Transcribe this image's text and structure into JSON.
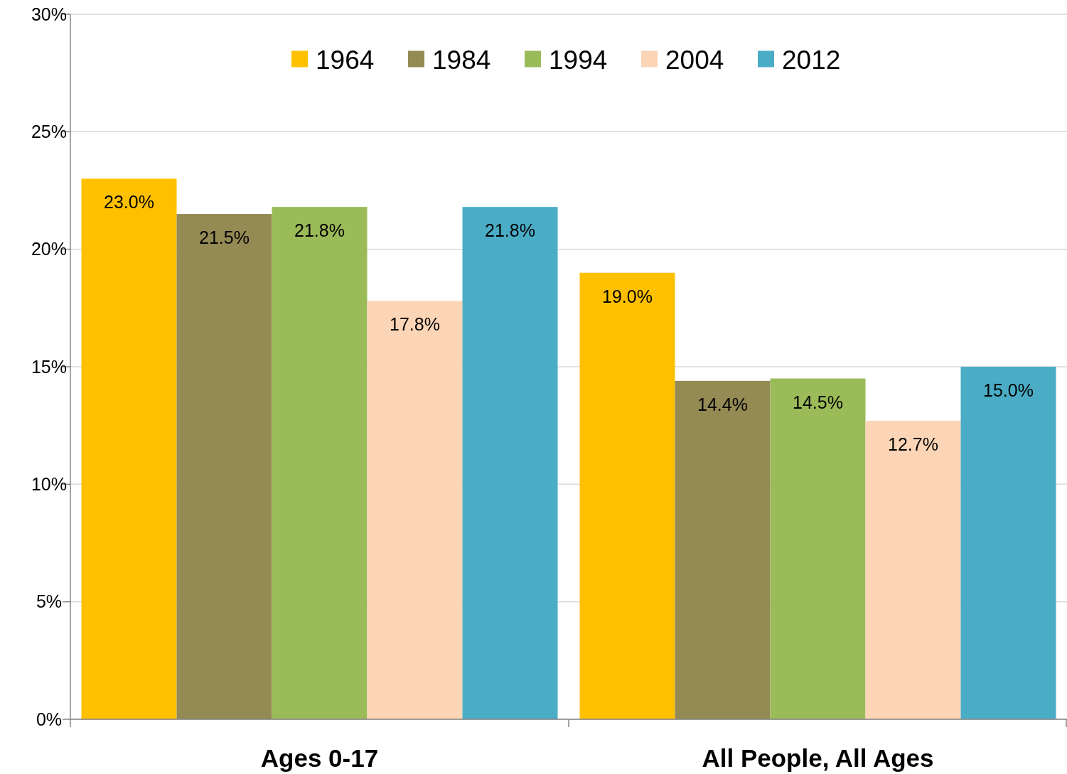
{
  "chart_data": {
    "type": "bar",
    "categories": [
      "Ages 0-17",
      "All People, All Ages"
    ],
    "series": [
      {
        "name": "1964",
        "color": "#ffc000",
        "values": [
          23.0,
          19.0
        ],
        "value_labels": [
          "23.0%",
          "19.0%"
        ]
      },
      {
        "name": "1984",
        "color": "#948a54",
        "values": [
          21.5,
          14.4
        ],
        "value_labels": [
          "21.5%",
          "14.4%"
        ]
      },
      {
        "name": "1994",
        "color": "#9bbb59",
        "values": [
          21.8,
          14.5
        ],
        "value_labels": [
          "21.8%",
          "14.5%"
        ]
      },
      {
        "name": "2004",
        "color": "#fbd5b5",
        "values": [
          17.8,
          12.7
        ],
        "value_labels": [
          "17.8%",
          "12.7%"
        ]
      },
      {
        "name": "2012",
        "color": "#4bacc6",
        "values": [
          21.8,
          15.0
        ],
        "value_labels": [
          "21.8%",
          "15.0%"
        ]
      }
    ],
    "ylim": [
      0,
      30
    ],
    "yticks": [
      {
        "value": 0,
        "label": "0%"
      },
      {
        "value": 5,
        "label": "5%"
      },
      {
        "value": 10,
        "label": "10%"
      },
      {
        "value": 15,
        "label": "15%"
      },
      {
        "value": 20,
        "label": "20%"
      },
      {
        "value": 25,
        "label": "25%"
      },
      {
        "value": 30,
        "label": "30%"
      }
    ],
    "grid": "y",
    "legend": "top"
  }
}
